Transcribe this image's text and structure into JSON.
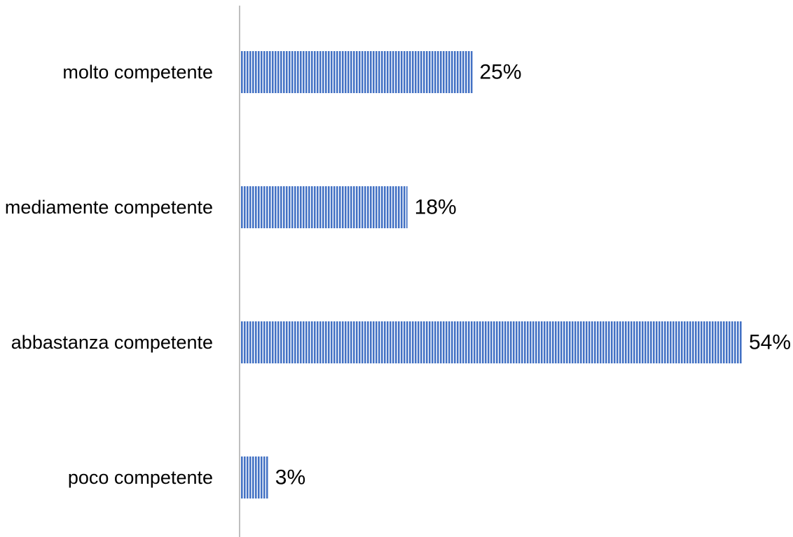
{
  "chart_data": {
    "type": "bar",
    "orientation": "horizontal",
    "categories": [
      "molto competente",
      "mediamente competente",
      "abbastanza competente",
      "poco competente"
    ],
    "values": [
      25,
      18,
      54,
      3
    ],
    "value_labels": [
      "25%",
      "18%",
      "54%",
      "3%"
    ],
    "unit": "%",
    "xlim": [
      0,
      54
    ],
    "grid": false,
    "legend": "none",
    "bar_color": "#4472C4",
    "bar_pattern": "vertical-stripes"
  }
}
